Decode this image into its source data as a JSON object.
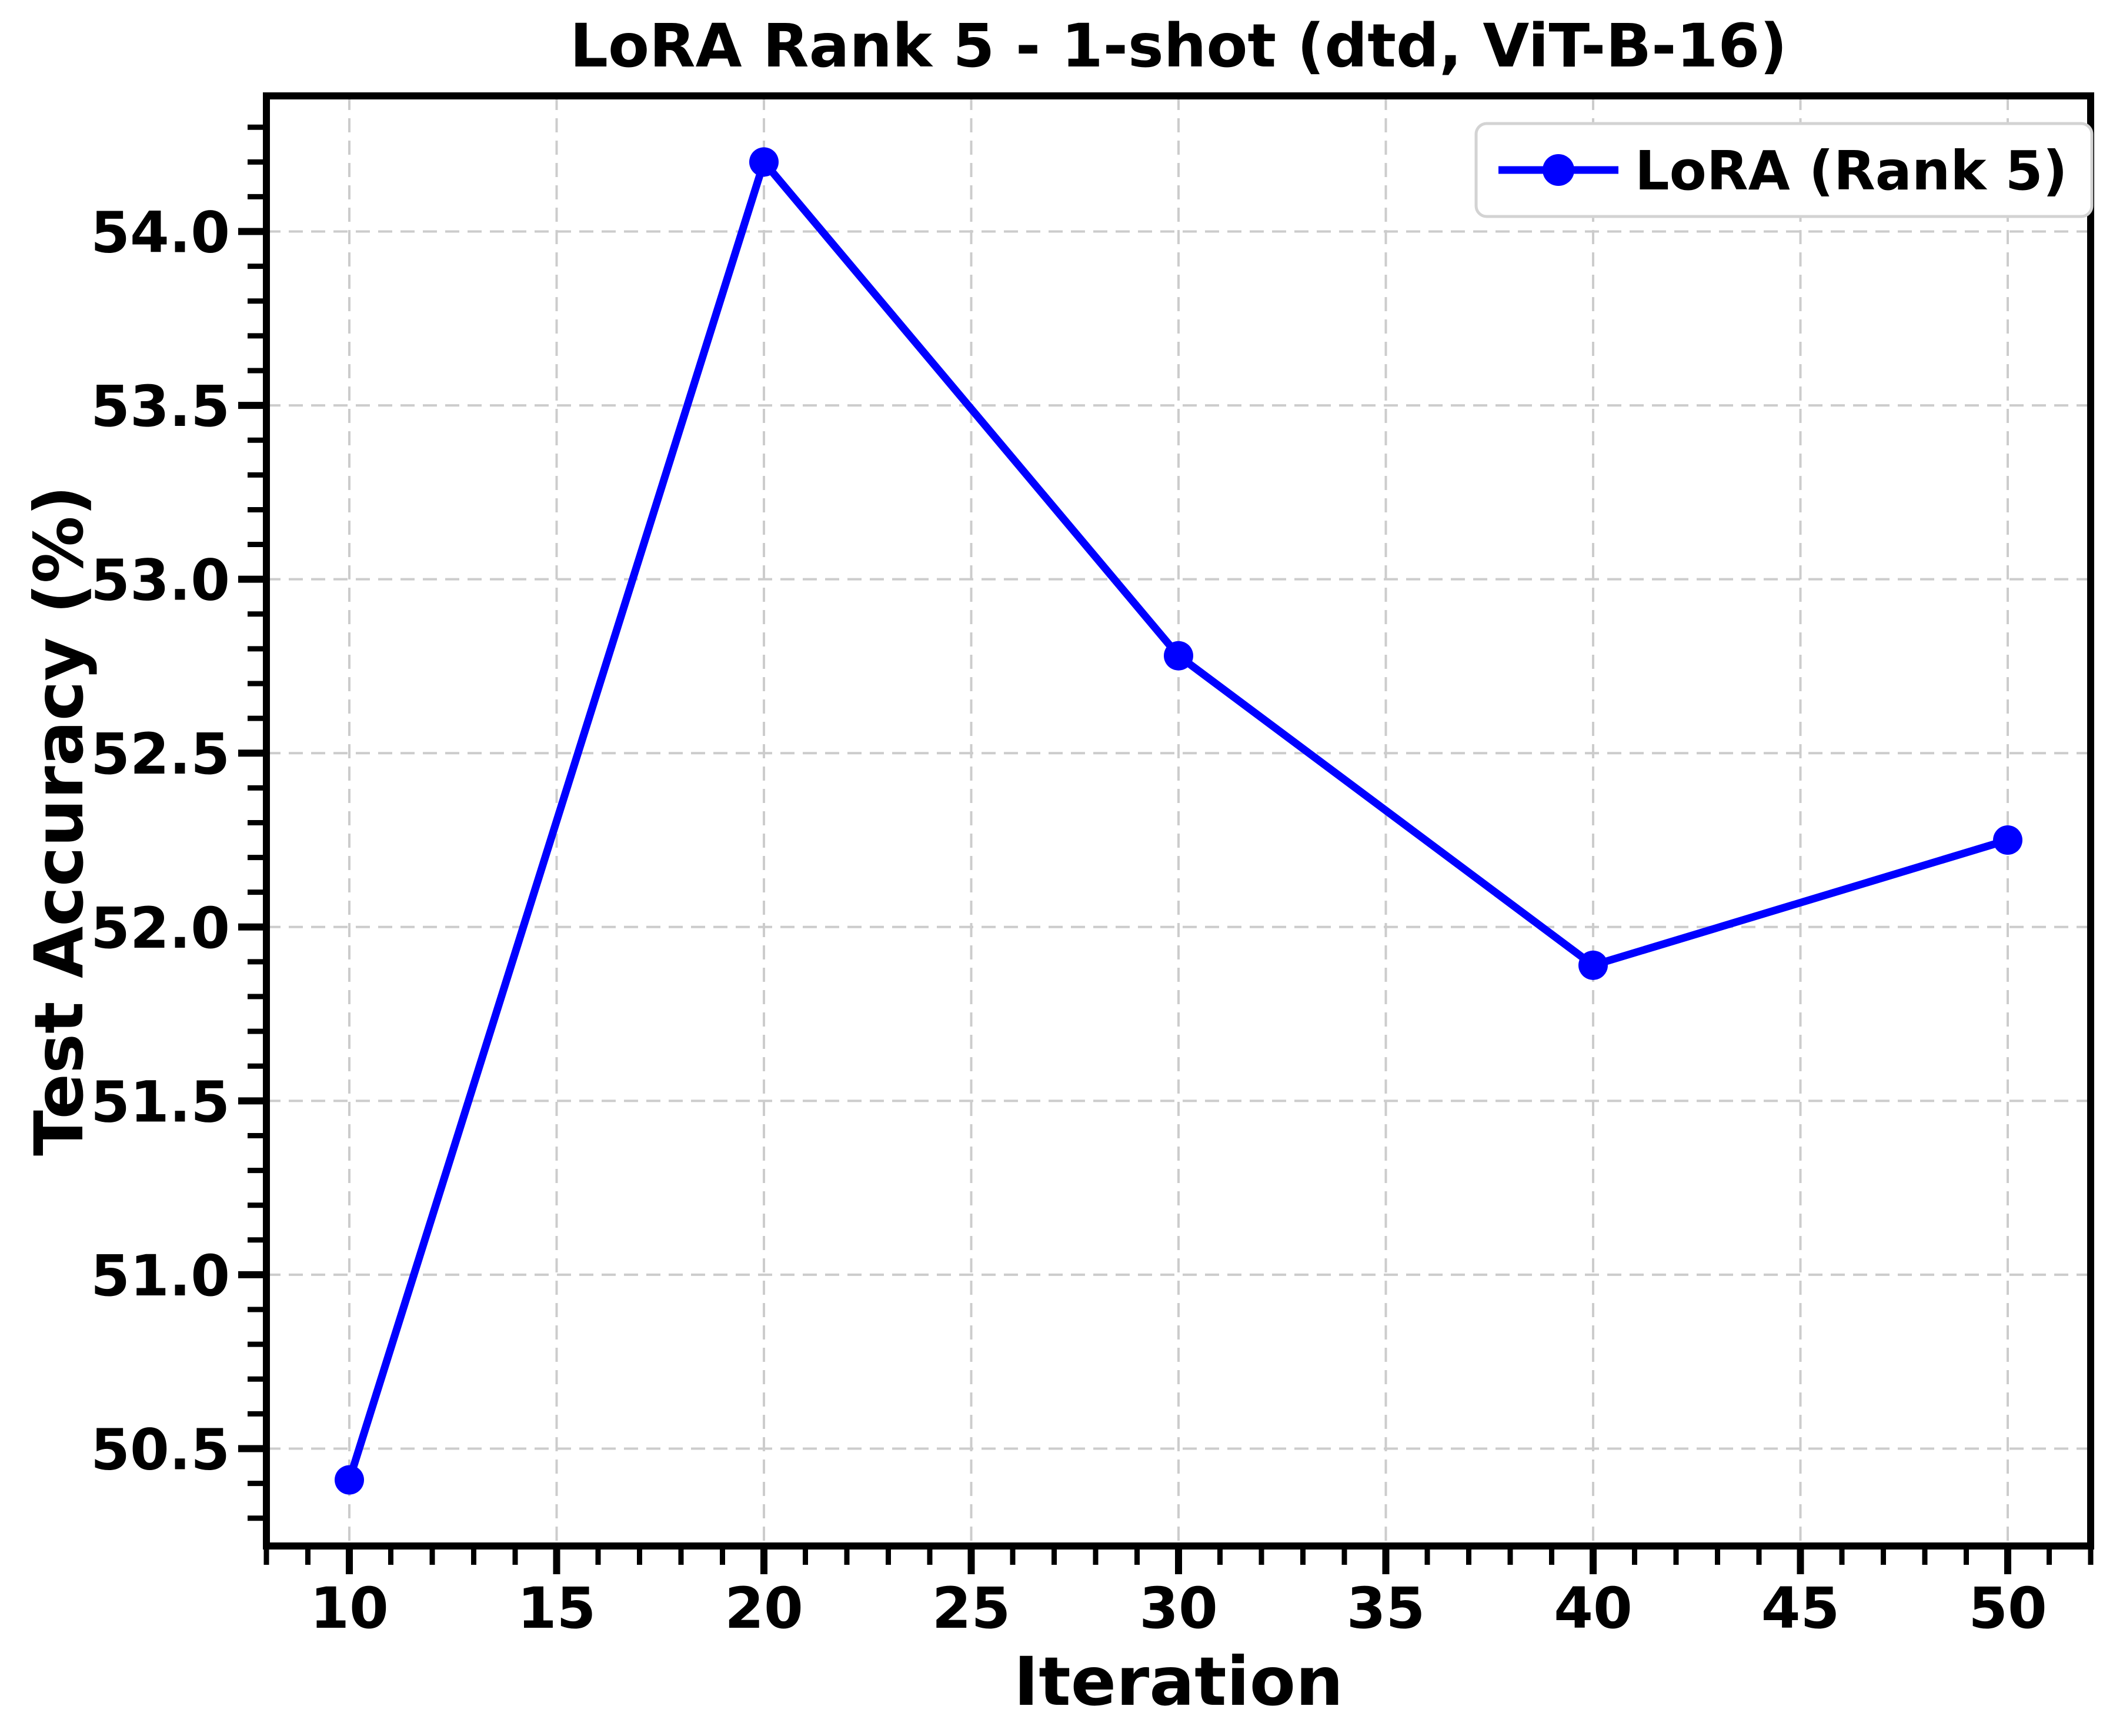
{
  "chart_data": {
    "type": "line",
    "title": "LoRA Rank 5 - 1-shot (dtd, ViT-B-16)",
    "xlabel": "Iteration",
    "ylabel": "Test Accuracy (%)",
    "x": [
      10,
      20,
      30,
      40,
      50
    ],
    "series": [
      {
        "name": "LoRA (Rank 5)",
        "values": [
          50.41,
          54.2,
          52.78,
          51.89,
          52.25
        ],
        "color": "#0000ff",
        "marker": "circle"
      }
    ],
    "xlim": [
      8,
      52
    ],
    "ylim": [
      50.22,
      54.39
    ],
    "x_tick_labels": [
      "10",
      "15",
      "20",
      "25",
      "30",
      "35",
      "40",
      "45",
      "50"
    ],
    "y_tick_labels": [
      "50.5",
      "51.0",
      "51.5",
      "52.0",
      "52.5",
      "53.0",
      "53.5",
      "54.0"
    ],
    "x_minor_step": 1,
    "y_minor_step": 0.1,
    "grid": true,
    "legend_position": "upper right",
    "colors": {
      "line": "#0000ff",
      "grid": "#cccccc",
      "axis": "#000000",
      "legend_border": "#d3d3d3",
      "background": "#ffffff"
    }
  }
}
